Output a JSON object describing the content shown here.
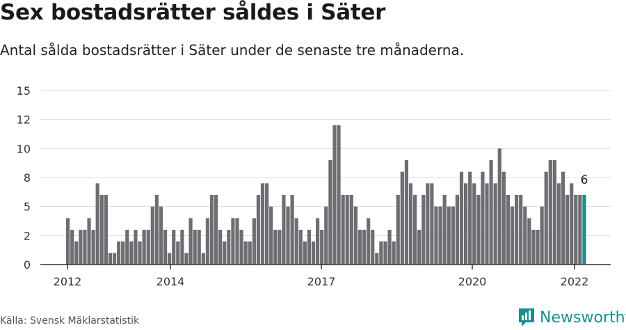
{
  "title": "Sex bostadsrätter såldes i Säter",
  "subtitle": "Antal sålda bostadsrätter i Säter under de senaste tre månaderna.",
  "source": "Källa: Svensk Mäklarstatistik",
  "brand": "Newsworthy",
  "colors": {
    "bar": "#6d6d72",
    "highlight": "#1a8f8c",
    "grid": "#dddddd",
    "axis": "#333333"
  },
  "chart_data": {
    "type": "bar",
    "x_ticks": [
      "2012",
      "2014",
      "2017",
      "2020",
      "2022"
    ],
    "y_ticks": [
      "0",
      "2",
      "5",
      "8",
      "10",
      "12",
      "15"
    ],
    "ylim": [
      0,
      15
    ],
    "grid": true,
    "highlight_label": "6",
    "series": [
      {
        "values": [
          4,
          3,
          2,
          3,
          3,
          4,
          3,
          7,
          6,
          6,
          1,
          1,
          2,
          2,
          3,
          2,
          3,
          2,
          3,
          3,
          5,
          6,
          5,
          3,
          1,
          3,
          2,
          3,
          1,
          4,
          3,
          3,
          1,
          4,
          6,
          6,
          3,
          2,
          3,
          4,
          4,
          3,
          2,
          2,
          4,
          6,
          7,
          7,
          5,
          3,
          3,
          6,
          5,
          6,
          4,
          3,
          2,
          3,
          2,
          4,
          3,
          5,
          9,
          12,
          12,
          6,
          6,
          6,
          5,
          3,
          3,
          4,
          3,
          1,
          2,
          2,
          3,
          2,
          6,
          8,
          9,
          7,
          6,
          3,
          6,
          7,
          7,
          5,
          5,
          6,
          5,
          5,
          6,
          8,
          7,
          8,
          7,
          6,
          8,
          7,
          9,
          7,
          10,
          8,
          6,
          5,
          6,
          6,
          5,
          4,
          3,
          3,
          5,
          8,
          9,
          9,
          7,
          8,
          6,
          7,
          6,
          6,
          6
        ]
      }
    ]
  }
}
